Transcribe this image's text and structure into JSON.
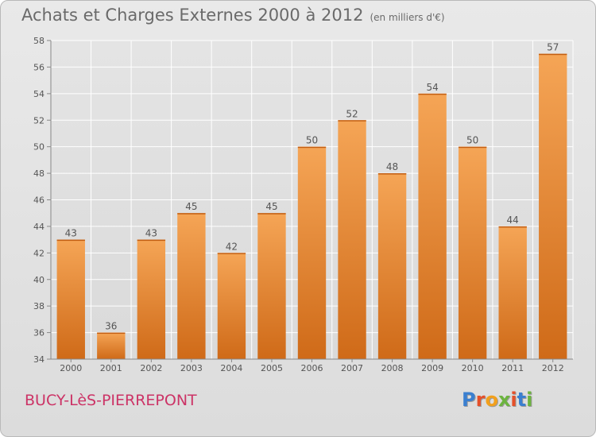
{
  "header": {
    "title": "Achats et Charges Externes 2000 à 2012",
    "subtitle": "(en milliers d'€)"
  },
  "footer": {
    "city": "BUCY-LèS-PIERREPONT",
    "logo_letters": [
      "P",
      "r",
      "o",
      "x",
      "i",
      "t",
      "i"
    ],
    "logo_colors": [
      "#3a7fd0",
      "#e5502a",
      "#f2a01c",
      "#6cb43f",
      "#e5502a",
      "#3a7fd0",
      "#6cb43f"
    ]
  },
  "chart_data": {
    "type": "bar",
    "categories": [
      "2000",
      "2001",
      "2002",
      "2003",
      "2004",
      "2005",
      "2006",
      "2007",
      "2008",
      "2009",
      "2010",
      "2011",
      "2012"
    ],
    "values": [
      43,
      36,
      43,
      45,
      42,
      45,
      50,
      52,
      48,
      54,
      50,
      44,
      57
    ],
    "ylim": [
      34,
      58
    ],
    "yticks": [
      34,
      36,
      38,
      40,
      42,
      44,
      46,
      48,
      50,
      52,
      54,
      56,
      58
    ],
    "grid": true,
    "bar_color": "#f0963c",
    "bar_color_dark": "#d4731c"
  }
}
